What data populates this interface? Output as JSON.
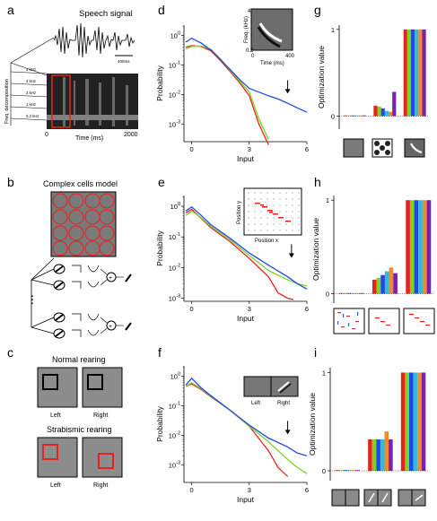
{
  "panels": {
    "a": {
      "letter": "a",
      "title": "Speech signal",
      "scalebar": "400ms",
      "ylabel": "Freq. decomposition",
      "bands": [
        "4 kHz",
        "3 kHz",
        "2 kHz",
        "1 kHz",
        "0.2 kHz"
      ],
      "xlabel": "Time (ms)",
      "x0": "0",
      "x1": "2000"
    },
    "b": {
      "letter": "b",
      "title": "Complex cells model",
      "ellipsis": "⋮"
    },
    "c": {
      "letter": "c",
      "normal": "Normal rearing",
      "strabismic": "Strabismic rearing",
      "left": "Left",
      "right": "Right"
    },
    "d": {
      "letter": "d",
      "inset_ylabel": "Freq. (kHz)",
      "inset_xlabel": "Time (ms)",
      "inset_y0": "0.2",
      "inset_y1": "4",
      "inset_x0": "0",
      "inset_x1": "400"
    },
    "e": {
      "letter": "e",
      "inset_ylabel": "Position y",
      "inset_xlabel": "Position x"
    },
    "f": {
      "letter": "f",
      "inset_left": "Left",
      "inset_right": "Right"
    },
    "g": {
      "letter": "g"
    },
    "h": {
      "letter": "h"
    },
    "i": {
      "letter": "i"
    }
  },
  "colors": {
    "red": "#e8231f",
    "green": "#7ed321",
    "blue": "#1f49e8",
    "cyan": "#34b9d9",
    "orange": "#f08a2c",
    "purple": "#7a1fb0",
    "axis": "#000000"
  },
  "chart_data": [
    {
      "id": "d",
      "type": "line",
      "xlabel": "Input",
      "ylabel": "Probability",
      "log_y": true,
      "xlim": [
        -0.4,
        6
      ],
      "ylim_exp": [
        -3.6,
        0.35
      ],
      "xticks": [
        "0",
        "3",
        "6"
      ],
      "yticks": [
        "10^0",
        "10^-1",
        "10^-2",
        "10^-3"
      ],
      "arrow_x": 5,
      "series": [
        {
          "color": "red",
          "x": [
            -0.3,
            0,
            0.5,
            1,
            1.5,
            2,
            2.5,
            3,
            3.5,
            4
          ],
          "y": [
            0.4,
            0.45,
            0.42,
            0.3,
            0.14,
            0.06,
            0.025,
            0.009,
            0.001,
            0.0002
          ]
        },
        {
          "color": "green",
          "x": [
            -0.3,
            0,
            0.5,
            1,
            1.5,
            2,
            2.5,
            3,
            3.5,
            4
          ],
          "y": [
            0.35,
            0.42,
            0.44,
            0.34,
            0.16,
            0.065,
            0.028,
            0.012,
            0.0015,
            0.0003
          ]
        },
        {
          "color": "blue",
          "x": [
            -0.3,
            0,
            0.5,
            1,
            1.5,
            2,
            2.5,
            3,
            3.5,
            4,
            4.5,
            5,
            5.5,
            6
          ],
          "y": [
            0.6,
            0.8,
            0.55,
            0.32,
            0.15,
            0.07,
            0.032,
            0.016,
            0.012,
            0.009,
            0.007,
            0.005,
            0.0035,
            0.0025
          ]
        }
      ]
    },
    {
      "id": "e",
      "type": "line",
      "xlabel": "Input",
      "ylabel": "Probability",
      "log_y": true,
      "xlim": [
        -0.4,
        6
      ],
      "ylim_exp": [
        -3.1,
        0.35
      ],
      "xticks": [
        "0",
        "3",
        "6"
      ],
      "yticks": [
        "10^0",
        "10^-1",
        "10^-2",
        "10^-3"
      ],
      "arrow_x": 5.2,
      "series": [
        {
          "color": "red",
          "x": [
            -0.3,
            0,
            0.5,
            1,
            2,
            3,
            4,
            4.5,
            5,
            5.3
          ],
          "y": [
            0.6,
            0.8,
            0.4,
            0.2,
            0.07,
            0.02,
            0.005,
            0.0015,
            0.001,
            0.0009
          ]
        },
        {
          "color": "green",
          "x": [
            -0.3,
            0,
            0.5,
            1,
            2,
            3,
            4,
            5,
            5.5,
            6
          ],
          "y": [
            0.5,
            0.7,
            0.42,
            0.22,
            0.08,
            0.025,
            0.008,
            0.004,
            0.003,
            0.0025
          ]
        },
        {
          "color": "blue",
          "x": [
            -0.3,
            0,
            0.5,
            1,
            2,
            3,
            4,
            5,
            5.5,
            6
          ],
          "y": [
            0.7,
            0.95,
            0.5,
            0.25,
            0.09,
            0.03,
            0.012,
            0.005,
            0.003,
            0.002
          ]
        }
      ]
    },
    {
      "id": "f",
      "type": "line",
      "xlabel": "Input",
      "ylabel": "Probability",
      "log_y": true,
      "xlim": [
        -0.4,
        6
      ],
      "ylim_exp": [
        -3.6,
        0.35
      ],
      "xticks": [
        "0",
        "3",
        "6"
      ],
      "yticks": [
        "10^0",
        "10^-1",
        "10^-2",
        "10^-3"
      ],
      "arrow_x": 5,
      "series": [
        {
          "color": "red",
          "x": [
            -0.3,
            0,
            0.5,
            1,
            2,
            3,
            4,
            4.5,
            5
          ],
          "y": [
            0.45,
            0.55,
            0.35,
            0.2,
            0.07,
            0.02,
            0.003,
            0.0008,
            0.0004
          ]
        },
        {
          "color": "green",
          "x": [
            -0.3,
            0,
            0.5,
            1,
            2,
            3,
            4,
            5,
            5.5,
            6
          ],
          "y": [
            0.45,
            0.6,
            0.37,
            0.21,
            0.07,
            0.02,
            0.006,
            0.0015,
            0.0008,
            0.0005
          ]
        },
        {
          "color": "blue",
          "x": [
            -0.3,
            0,
            0.5,
            1,
            2,
            3,
            4,
            5,
            5.5,
            6
          ],
          "y": [
            0.5,
            0.85,
            0.4,
            0.22,
            0.07,
            0.022,
            0.008,
            0.004,
            0.0025,
            0.002
          ]
        }
      ]
    },
    {
      "id": "g",
      "type": "bar",
      "ylabel": "Optimization value",
      "yticks": [
        "0",
        "1"
      ],
      "ylim": [
        -0.15,
        1.05
      ],
      "series_colors": [
        "red",
        "green",
        "blue",
        "cyan",
        "orange",
        "purple"
      ],
      "groups": [
        {
          "values": [
            0,
            0,
            0,
            0,
            0,
            0
          ]
        },
        {
          "values": [
            0.12,
            0.11,
            0.09,
            0.06,
            0.05,
            0.28
          ]
        },
        {
          "values": [
            1,
            1,
            1,
            1,
            1,
            1
          ]
        }
      ]
    },
    {
      "id": "h",
      "type": "bar",
      "ylabel": "Optimization value",
      "yticks": [
        "0",
        "1"
      ],
      "ylim": [
        -0.1,
        1.05
      ],
      "series_colors": [
        "red",
        "green",
        "blue",
        "cyan",
        "orange",
        "purple"
      ],
      "groups": [
        {
          "values": [
            0,
            0,
            0,
            0,
            0,
            0
          ]
        },
        {
          "values": [
            0.15,
            0.17,
            0.2,
            0.24,
            0.28,
            0.22
          ]
        },
        {
          "values": [
            1,
            1,
            1,
            1,
            1,
            1
          ]
        }
      ]
    },
    {
      "id": "i",
      "type": "bar",
      "ylabel": "Optimization value",
      "yticks": [
        "0",
        "1"
      ],
      "ylim": [
        -0.1,
        1.05
      ],
      "series_colors": [
        "red",
        "green",
        "blue",
        "cyan",
        "orange",
        "purple"
      ],
      "groups": [
        {
          "values": [
            0,
            0,
            0,
            0,
            0,
            0
          ]
        },
        {
          "values": [
            0.32,
            0.32,
            0.32,
            0.32,
            0.4,
            0.32
          ]
        },
        {
          "values": [
            1,
            1,
            1,
            1,
            1,
            1
          ]
        }
      ]
    }
  ]
}
